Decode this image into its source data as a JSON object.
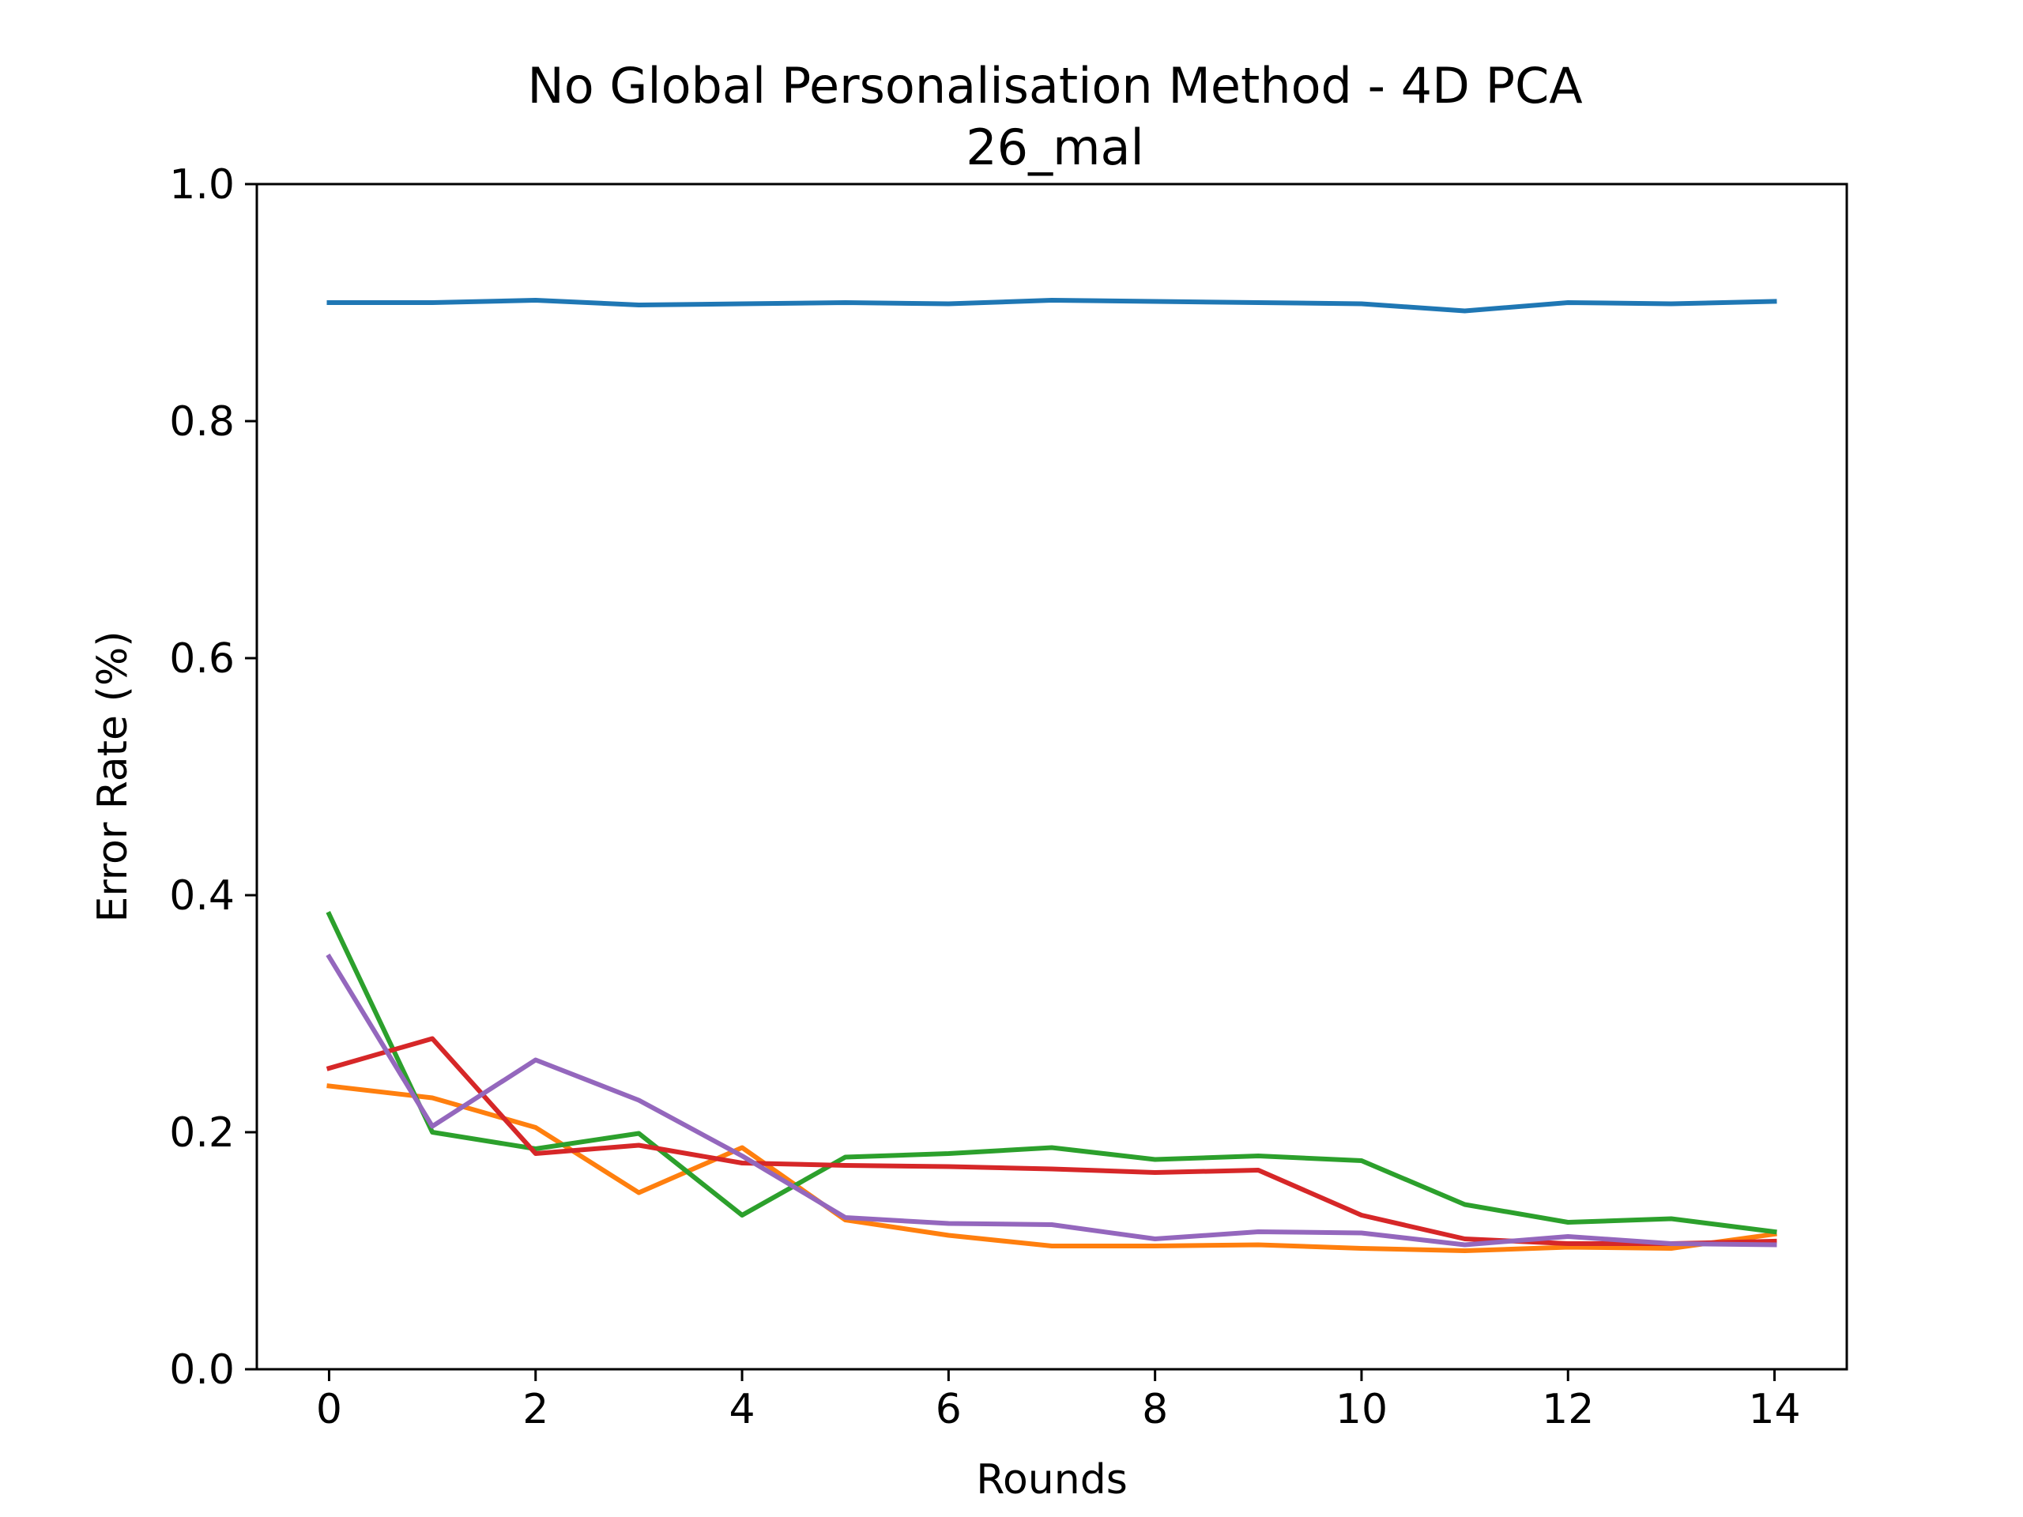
{
  "chart_data": {
    "type": "line",
    "title": "No Global Personalisation Method - 4D PCA",
    "subtitle": "26_mal",
    "xlabel": "Rounds",
    "ylabel": "Error Rate (%)",
    "xlim": [
      -0.7,
      14.7
    ],
    "ylim": [
      0.0,
      1.0
    ],
    "xticks": [
      0,
      2,
      4,
      6,
      8,
      10,
      12,
      14
    ],
    "xtick_labels": [
      "0",
      "2",
      "4",
      "6",
      "8",
      "10",
      "12",
      "14"
    ],
    "yticks": [
      0.0,
      0.2,
      0.4,
      0.6,
      0.8,
      1.0
    ],
    "ytick_labels": [
      "0.0",
      "0.2",
      "0.4",
      "0.6",
      "0.8",
      "1.0"
    ],
    "grid": false,
    "x": [
      0,
      1,
      2,
      3,
      4,
      5,
      6,
      7,
      8,
      9,
      10,
      11,
      12,
      13,
      14
    ],
    "series": [
      {
        "color": "#1f77b4",
        "values": [
          0.9,
          0.9,
          0.902,
          0.898,
          0.899,
          0.9,
          0.899,
          0.902,
          0.901,
          0.9,
          0.899,
          0.893,
          0.9,
          0.899,
          0.901
        ]
      },
      {
        "color": "#ff7f0e",
        "values": [
          0.239,
          0.229,
          0.204,
          0.149,
          0.187,
          0.126,
          0.113,
          0.104,
          0.104,
          0.105,
          0.102,
          0.1,
          0.103,
          0.102,
          0.114
        ]
      },
      {
        "color": "#2ca02c",
        "values": [
          0.384,
          0.2,
          0.186,
          0.199,
          0.13,
          0.179,
          0.182,
          0.187,
          0.177,
          0.18,
          0.176,
          0.139,
          0.124,
          0.127,
          0.116
        ]
      },
      {
        "color": "#d62728",
        "values": [
          0.254,
          0.279,
          0.182,
          0.189,
          0.174,
          0.172,
          0.171,
          0.169,
          0.166,
          0.168,
          0.13,
          0.11,
          0.106,
          0.106,
          0.108
        ]
      },
      {
        "color": "#9467bd",
        "values": [
          0.348,
          0.205,
          0.261,
          0.227,
          0.18,
          0.128,
          0.123,
          0.122,
          0.11,
          0.116,
          0.115,
          0.105,
          0.112,
          0.106,
          0.105
        ]
      }
    ]
  }
}
